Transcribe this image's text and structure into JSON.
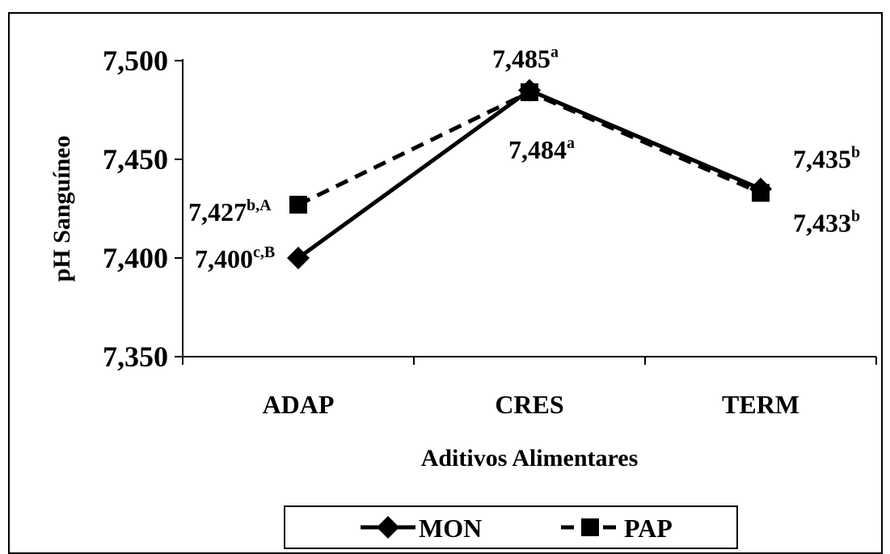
{
  "chart_data": {
    "type": "line",
    "xlabel": "Aditivos Alimentares",
    "ylabel": "pH Sanguíneo",
    "categories": [
      "ADAP",
      "CRES",
      "TERM"
    ],
    "yticks": [
      "7,350",
      "7,400",
      "7,450",
      "7,500"
    ],
    "ylim": [
      7.35,
      7.5
    ],
    "grid": false,
    "legend_position": "bottom",
    "series": [
      {
        "name": "MON",
        "values": [
          7.4,
          7.485,
          7.435
        ],
        "labels": [
          "7,400",
          "7,485",
          "7,435"
        ],
        "superscripts": [
          "c,B",
          "a",
          "b"
        ],
        "line_style": "solid",
        "marker": "diamond",
        "color": "#000000"
      },
      {
        "name": "PAP",
        "values": [
          7.427,
          7.484,
          7.433
        ],
        "labels": [
          "7,427",
          "7,484",
          "7,433"
        ],
        "superscripts": [
          "b,A",
          "a",
          "b"
        ],
        "line_style": "dashed",
        "marker": "square",
        "color": "#000000"
      }
    ]
  }
}
